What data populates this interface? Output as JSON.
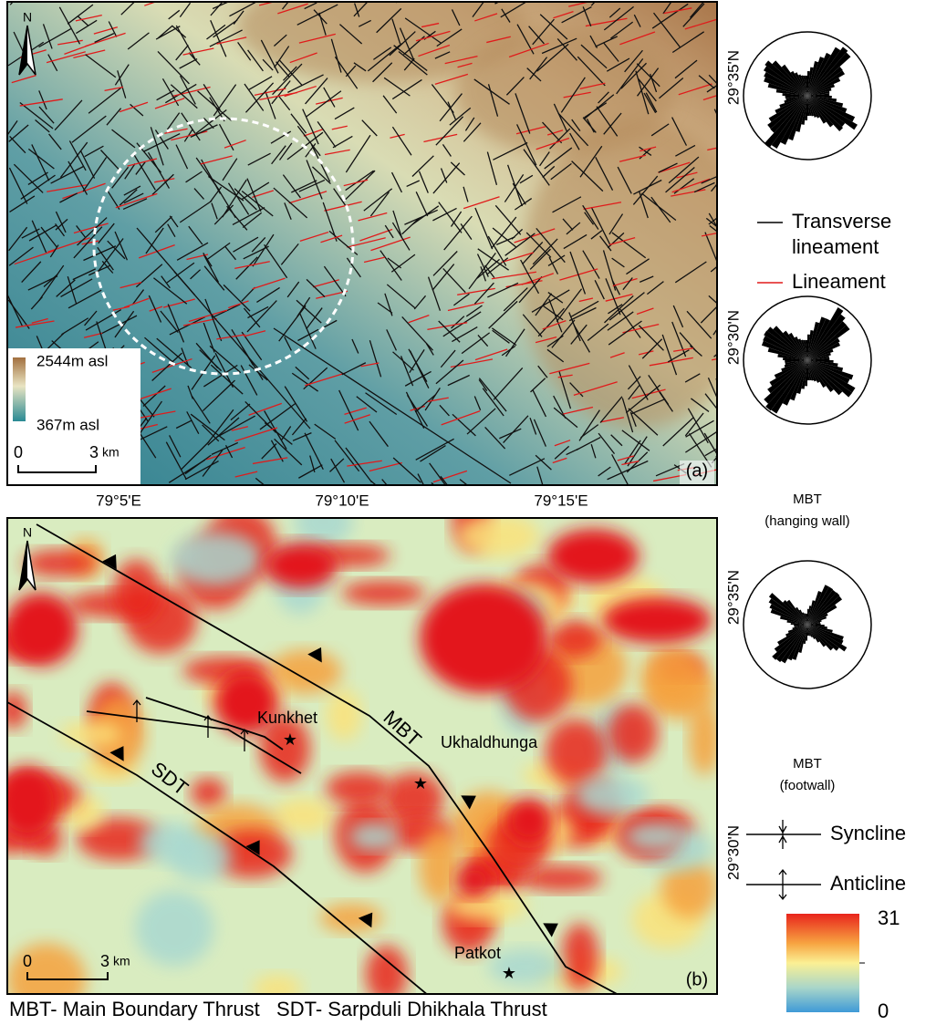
{
  "panel_a": {
    "north": "N",
    "elevation_legend": {
      "max": "2544m asl",
      "min": "367m asl"
    },
    "scale": {
      "start": "0",
      "end": "3",
      "unit": "km"
    },
    "label": "(a)",
    "latitudes": [
      "29°35'N",
      "29°30'N"
    ]
  },
  "longitudes": [
    "79°5'E",
    "79°10'E",
    "79°15'E"
  ],
  "panel_b": {
    "north": "N",
    "places": [
      "Kunkhet",
      "Ukhaldhunga",
      "Patkot"
    ],
    "faults": [
      "MBT",
      "SDT"
    ],
    "scale": {
      "start": "0",
      "end": "3",
      "unit": "km"
    },
    "label": "(b)",
    "latitudes": [
      "29°35'N",
      "29°30'N"
    ]
  },
  "legend": {
    "transverse": [
      "Transverse",
      "lineament"
    ],
    "lineament": "Lineament"
  },
  "rose_captions": [
    [
      "MBT",
      "(hanging wall)"
    ],
    [
      "MBT",
      "(footwall)"
    ]
  ],
  "folds": [
    "Syncline",
    "Anticline"
  ],
  "colorbar": {
    "max": "31",
    "min": "0"
  },
  "footer": "MBT- Main Boundary Thrust   SDT- Sarpduli Dhikhala Thrust"
}
